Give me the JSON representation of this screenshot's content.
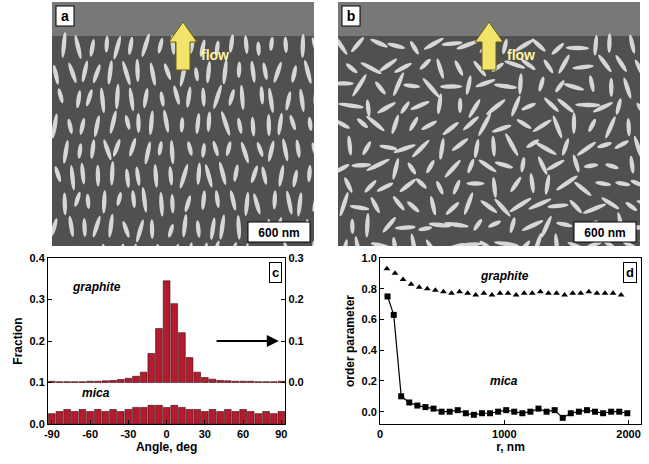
{
  "panels": [
    {
      "label": "a",
      "arrow_text": "flow",
      "scale_bar": "600 nm"
    },
    {
      "label": "b",
      "arrow_text": "flow",
      "scale_bar": "600 nm"
    }
  ],
  "chart_data": [
    {
      "type": "bar",
      "panel": "c",
      "x_label": "Angle, deg",
      "y_label": "Fraction",
      "x": [
        -90,
        -84,
        -78,
        -72,
        -66,
        -60,
        -54,
        -48,
        -42,
        -36,
        -30,
        -24,
        -18,
        -12,
        -6,
        0,
        6,
        12,
        18,
        24,
        30,
        36,
        42,
        48,
        54,
        60,
        66,
        72,
        78,
        84,
        90
      ],
      "xlim": [
        -93,
        93
      ],
      "xticks": [
        -90,
        -60,
        -30,
        0,
        30,
        60,
        90
      ],
      "ylim": [
        0,
        0.4
      ],
      "yticks": [
        {
          "value": 0,
          "label": "0.0"
        },
        0.1,
        0.2,
        0.3,
        0.4
      ],
      "y2lim": [
        -0.1,
        0.3
      ],
      "y2ticks": [
        {
          "value": 0,
          "label": "0.0"
        },
        0.1,
        0.2,
        0.3
      ],
      "color": "#b31b2e",
      "grid": false,
      "series": [
        {
          "name": "graphite",
          "axis": "y2",
          "values": [
            0.003,
            0.002,
            0.002,
            0.002,
            0.002,
            0.003,
            0.003,
            0.004,
            0.005,
            0.007,
            0.01,
            0.015,
            0.025,
            0.07,
            0.13,
            0.245,
            0.19,
            0.12,
            0.06,
            0.025,
            0.012,
            0.008,
            0.005,
            0.004,
            0.003,
            0.003,
            0.003,
            0.002,
            0.002,
            0.002,
            0.003
          ]
        },
        {
          "name": "mica",
          "axis": "y",
          "values": [
            0.025,
            0.03,
            0.035,
            0.03,
            0.035,
            0.03,
            0.035,
            0.03,
            0.035,
            0.03,
            0.035,
            0.04,
            0.04,
            0.045,
            0.045,
            0.04,
            0.045,
            0.04,
            0.035,
            0.035,
            0.03,
            0.035,
            0.03,
            0.035,
            0.03,
            0.035,
            0.03,
            0.025,
            0.03,
            0.025,
            0.03
          ]
        }
      ]
    },
    {
      "type": "line",
      "panel": "d",
      "x_label": "r, nm",
      "y_label": "order parameter",
      "xlim": [
        0,
        2100
      ],
      "xticks": [
        0,
        1000,
        2000
      ],
      "ylim": [
        -0.08,
        1.0
      ],
      "yticks": [
        {
          "value": 0,
          "label": "0.0"
        },
        0.2,
        0.4,
        0.6,
        0.8,
        {
          "value": 1,
          "label": "1.0"
        }
      ],
      "color": "#000000",
      "grid": false,
      "series": [
        {
          "name": "graphite",
          "type": "scatter",
          "marker": "triangle-up",
          "x": [
            55,
            120,
            185,
            250,
            315,
            380,
            445,
            510,
            575,
            640,
            705,
            770,
            835,
            900,
            965,
            1030,
            1095,
            1160,
            1225,
            1290,
            1355,
            1420,
            1485,
            1550,
            1615,
            1680,
            1745,
            1810,
            1875,
            1940
          ],
          "values": [
            0.93,
            0.9,
            0.86,
            0.83,
            0.81,
            0.8,
            0.79,
            0.78,
            0.77,
            0.78,
            0.77,
            0.76,
            0.77,
            0.76,
            0.77,
            0.77,
            0.76,
            0.77,
            0.77,
            0.78,
            0.77,
            0.77,
            0.76,
            0.77,
            0.77,
            0.78,
            0.77,
            0.77,
            0.77,
            0.76
          ]
        },
        {
          "name": "mica",
          "type": "line",
          "marker": "square",
          "x": [
            60,
            110,
            170,
            235,
            300,
            365,
            430,
            495,
            560,
            625,
            690,
            755,
            820,
            885,
            950,
            1015,
            1080,
            1145,
            1210,
            1275,
            1340,
            1405,
            1470,
            1535,
            1600,
            1665,
            1730,
            1795,
            1860,
            1925,
            1990
          ],
          "values": [
            0.75,
            0.63,
            0.1,
            0.06,
            0.04,
            0.03,
            0.02,
            0.0,
            0.0,
            0.01,
            -0.01,
            -0.02,
            -0.01,
            -0.01,
            0.0,
            0.01,
            0.0,
            -0.01,
            0.0,
            0.02,
            0.0,
            0.01,
            -0.04,
            -0.01,
            0.0,
            0.01,
            0.0,
            -0.01,
            0.0,
            0.0,
            -0.01
          ]
        }
      ]
    }
  ]
}
